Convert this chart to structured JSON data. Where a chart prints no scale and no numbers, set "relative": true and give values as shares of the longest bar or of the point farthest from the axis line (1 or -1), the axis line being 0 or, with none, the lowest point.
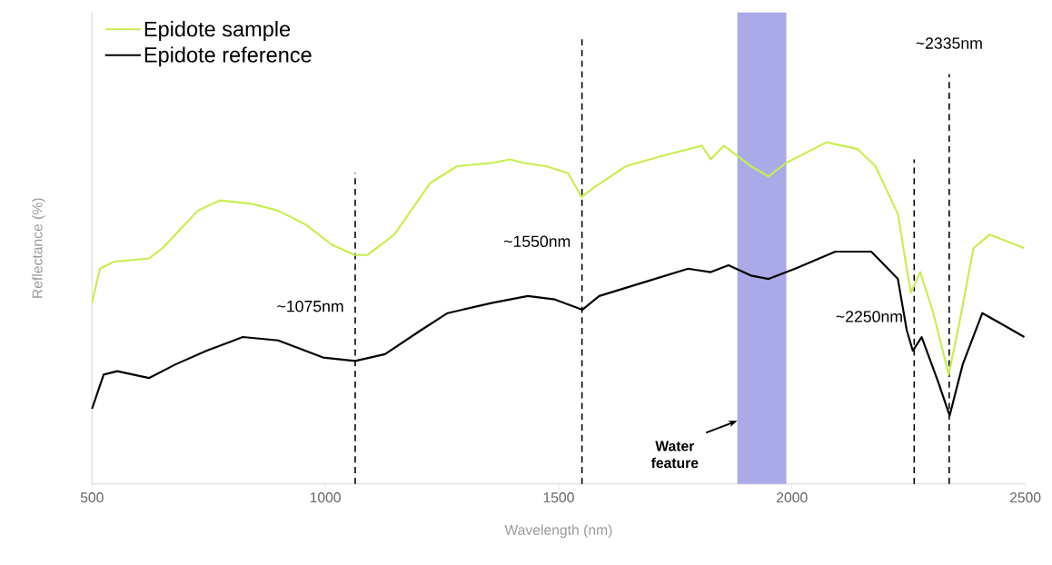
{
  "chart_data": {
    "type": "line",
    "relative": true,
    "xlabel": "Wavelength (nm)",
    "ylabel": "Reflectance (%)",
    "xlim": [
      500,
      2500
    ],
    "xticks": [
      500,
      1000,
      1500,
      2000,
      2500
    ],
    "legend": "top left",
    "series": [
      {
        "name": "Epidote sample",
        "color": "#c8ee50",
        "x": [
          500,
          517,
          546,
          622,
          651,
          727,
          775,
          842,
          899,
          957,
          1014,
          1064,
          1090,
          1148,
          1224,
          1282,
          1358,
          1396,
          1424,
          1473,
          1520,
          1549,
          1578,
          1644,
          1721,
          1807,
          1826,
          1854,
          1912,
          1950,
          1988,
          2074,
          2141,
          2179,
          2227,
          2246,
          2255,
          2275,
          2303,
          2336,
          2360,
          2389,
          2424,
          2498
        ],
        "values": [
          0.53,
          0.63,
          0.65,
          0.66,
          0.69,
          0.8,
          0.83,
          0.82,
          0.8,
          0.76,
          0.7,
          0.67,
          0.67,
          0.73,
          0.88,
          0.93,
          0.94,
          0.95,
          0.94,
          0.93,
          0.91,
          0.84,
          0.87,
          0.93,
          0.96,
          0.99,
          0.95,
          0.99,
          0.93,
          0.9,
          0.94,
          1.0,
          0.98,
          0.93,
          0.79,
          0.63,
          0.56,
          0.62,
          0.5,
          0.32,
          0.48,
          0.69,
          0.73,
          0.69
        ]
      },
      {
        "name": "Epidote reference",
        "color": "#000000",
        "x": [
          500,
          525,
          554,
          622,
          679,
          746,
          823,
          899,
          995,
          1064,
          1128,
          1205,
          1262,
          1358,
          1434,
          1492,
          1551,
          1587,
          1682,
          1778,
          1826,
          1864,
          1912,
          1950,
          2007,
          2093,
          2170,
          2227,
          2246,
          2259,
          2278,
          2313,
          2338,
          2366,
          2408,
          2447,
          2498
        ],
        "values": [
          0.22,
          0.32,
          0.33,
          0.31,
          0.35,
          0.39,
          0.43,
          0.42,
          0.37,
          0.36,
          0.38,
          0.45,
          0.5,
          0.53,
          0.55,
          0.54,
          0.51,
          0.55,
          0.59,
          0.63,
          0.62,
          0.64,
          0.61,
          0.6,
          0.63,
          0.68,
          0.68,
          0.6,
          0.45,
          0.39,
          0.43,
          0.3,
          0.2,
          0.35,
          0.5,
          0.47,
          0.43
        ]
      }
    ],
    "ref_lines": [
      {
        "axis": "x",
        "value": 1064,
        "label": "~1075nm",
        "color": "#000000",
        "line_style": "dashed"
      },
      {
        "axis": "x",
        "value": 1550,
        "label": "~1550nm",
        "color": "#000000",
        "line_style": "dashed"
      },
      {
        "axis": "x",
        "value": 2262,
        "label": "~2250nm",
        "color": "#000000",
        "line_style": "dashed"
      },
      {
        "axis": "x",
        "value": 2337,
        "label": "~2335nm",
        "color": "#000000",
        "line_style": "dashed"
      }
    ],
    "bands": [
      {
        "axis": "x",
        "from": 1883,
        "to": 1988,
        "label": "Water feature",
        "color": "#aaaae8"
      }
    ]
  }
}
